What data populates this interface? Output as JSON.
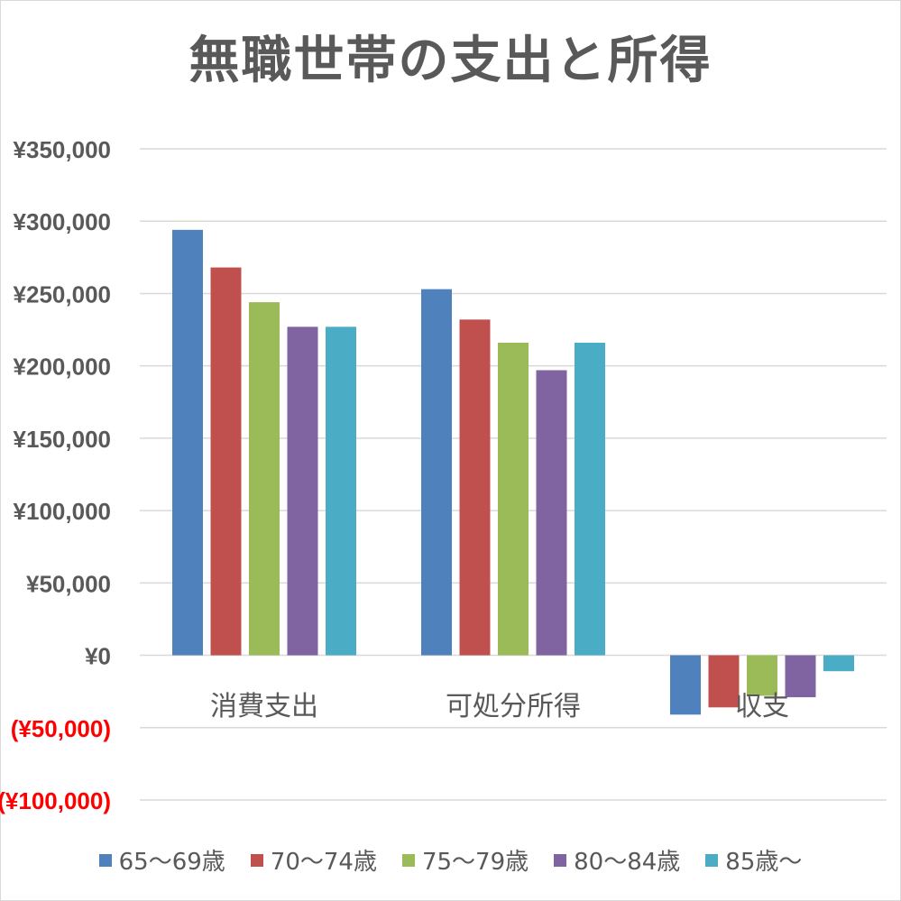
{
  "chart_data": {
    "type": "bar",
    "title": "無職世帯の支出と所得",
    "categories": [
      "消費支出",
      "可処分所得",
      "収支"
    ],
    "series": [
      {
        "name": "65〜69歳",
        "color": "#4f81bd",
        "values": [
          294000,
          253000,
          -41000
        ]
      },
      {
        "name": "70〜74歳",
        "color": "#c0504d",
        "values": [
          268000,
          232000,
          -36000
        ]
      },
      {
        "name": "75〜79歳",
        "color": "#9bbb59",
        "values": [
          244000,
          216000,
          -28000
        ]
      },
      {
        "name": "80〜84歳",
        "color": "#8064a2",
        "values": [
          227000,
          197000,
          -29000
        ]
      },
      {
        "name": "85歳〜",
        "color": "#4bacc6",
        "values": [
          227000,
          216000,
          -11000
        ]
      }
    ],
    "ylim": [
      -100000,
      350000
    ],
    "yticks": [
      {
        "value": 350000,
        "label": "¥350,000"
      },
      {
        "value": 300000,
        "label": "¥300,000"
      },
      {
        "value": 250000,
        "label": "¥250,000"
      },
      {
        "value": 200000,
        "label": "¥200,000"
      },
      {
        "value": 150000,
        "label": "¥150,000"
      },
      {
        "value": 100000,
        "label": "¥100,000"
      },
      {
        "value": 50000,
        "label": "¥50,000"
      },
      {
        "value": 0,
        "label": "¥0"
      },
      {
        "value": -50000,
        "label": "(¥50,000)"
      },
      {
        "value": -100000,
        "label": "(¥100,000)"
      }
    ],
    "negative_label_color": "#ff0000",
    "grid": true,
    "legend_position": "bottom"
  }
}
